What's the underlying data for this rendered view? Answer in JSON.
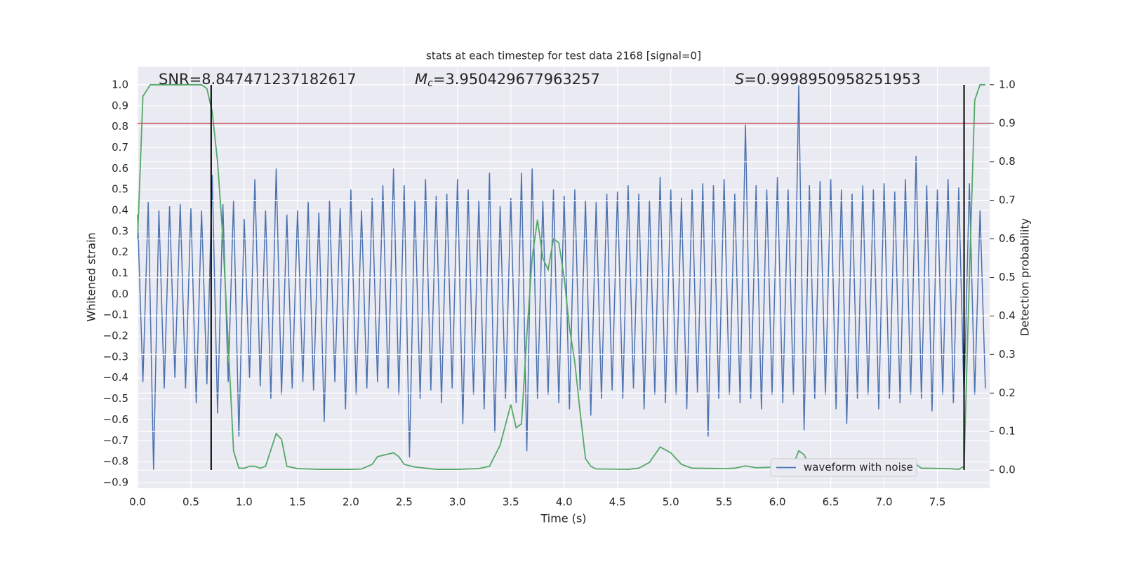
{
  "chart_data": {
    "type": "line",
    "title": "stats at each timestep for test data 2168 [signal=0]",
    "xlabel": "Time (s)",
    "ylabel": "Whitened strain",
    "y2label": "Detection probability",
    "annotations": {
      "snr": "SNR=8.847471237182617",
      "mc_symbol": "M",
      "mc_sub": "c",
      "mc_value": "=3.950429677963257",
      "s_symbol": "S",
      "s_value": "=0.9998950958251953"
    },
    "xlim": [
      0,
      7.99
    ],
    "ylim": [
      -0.927,
      1.087
    ],
    "y2lim": [
      -0.047,
      1.047
    ],
    "xticks": [
      {
        "value": 0,
        "label": "0.0"
      },
      {
        "value": 0.5,
        "label": "0.5"
      },
      {
        "value": 1,
        "label": "1.0"
      },
      {
        "value": 1.5,
        "label": "1.5"
      },
      {
        "value": 2,
        "label": "2.0"
      },
      {
        "value": 2.5,
        "label": "2.5"
      },
      {
        "value": 3,
        "label": "3.0"
      },
      {
        "value": 3.5,
        "label": "3.5"
      },
      {
        "value": 4,
        "label": "4.0"
      },
      {
        "value": 4.5,
        "label": "4.5"
      },
      {
        "value": 5,
        "label": "5.0"
      },
      {
        "value": 5.5,
        "label": "5.5"
      },
      {
        "value": 6,
        "label": "6.0"
      },
      {
        "value": 6.5,
        "label": "6.5"
      },
      {
        "value": 7,
        "label": "7.0"
      },
      {
        "value": 7.5,
        "label": "7.5"
      }
    ],
    "yticks": [
      {
        "value": 1,
        "label": "1.0"
      },
      {
        "value": 0.9,
        "label": "0.9"
      },
      {
        "value": 0.8,
        "label": "0.8"
      },
      {
        "value": 0.7,
        "label": "0.7"
      },
      {
        "value": 0.6,
        "label": "0.6"
      },
      {
        "value": 0.5,
        "label": "0.5"
      },
      {
        "value": 0.4,
        "label": "0.4"
      },
      {
        "value": 0.3,
        "label": "0.3"
      },
      {
        "value": 0.2,
        "label": "0.2"
      },
      {
        "value": 0.1,
        "label": "0.1"
      },
      {
        "value": 0,
        "label": "0.0"
      },
      {
        "value": -0.1,
        "label": "−0.1"
      },
      {
        "value": -0.2,
        "label": "−0.2"
      },
      {
        "value": -0.3,
        "label": "−0.3"
      },
      {
        "value": -0.4,
        "label": "−0.4"
      },
      {
        "value": -0.5,
        "label": "−0.5"
      },
      {
        "value": -0.6,
        "label": "−0.6"
      },
      {
        "value": -0.7,
        "label": "−0.7"
      },
      {
        "value": -0.8,
        "label": "−0.8"
      },
      {
        "value": -0.9,
        "label": "−0.9"
      }
    ],
    "y2ticks": [
      {
        "value": 0,
        "label": "0.0"
      },
      {
        "value": 0.1,
        "label": "0.1"
      },
      {
        "value": 0.2,
        "label": "0.2"
      },
      {
        "value": 0.3,
        "label": "0.3"
      },
      {
        "value": 0.4,
        "label": "0.4"
      },
      {
        "value": 0.5,
        "label": "0.5"
      },
      {
        "value": 0.6,
        "label": "0.6"
      },
      {
        "value": 0.7,
        "label": "0.7"
      },
      {
        "value": 0.8,
        "label": "0.8"
      },
      {
        "value": 0.9,
        "label": "0.9"
      },
      {
        "value": 1,
        "label": "1.0"
      }
    ],
    "grid": true,
    "legend": "lower right",
    "threshold": {
      "value": 0.9,
      "color": "#c44e52"
    },
    "vlines": {
      "x": [
        0.69,
        7.75
      ],
      "y": [
        -0.84,
        1.0
      ],
      "color": "#000000"
    },
    "series": [
      {
        "name": "waveform with noise",
        "color": "#4c72b0",
        "x": [
          0,
          0.05,
          0.1,
          0.15,
          0.2,
          0.25,
          0.3,
          0.35,
          0.4,
          0.45,
          0.5,
          0.55,
          0.6,
          0.65,
          0.7,
          0.75,
          0.8,
          0.85,
          0.9,
          0.95,
          1,
          1.05,
          1.1,
          1.15,
          1.2,
          1.25,
          1.3,
          1.35,
          1.4,
          1.45,
          1.5,
          1.55,
          1.6,
          1.65,
          1.7,
          1.75,
          1.8,
          1.85,
          1.9,
          1.95,
          2,
          2.05,
          2.1,
          2.15,
          2.2,
          2.25,
          2.3,
          2.35,
          2.4,
          2.45,
          2.5,
          2.55,
          2.6,
          2.65,
          2.7,
          2.75,
          2.8,
          2.85,
          2.9,
          2.95,
          3,
          3.05,
          3.1,
          3.15,
          3.2,
          3.25,
          3.3,
          3.35,
          3.4,
          3.45,
          3.5,
          3.55,
          3.6,
          3.65,
          3.7,
          3.75,
          3.8,
          3.85,
          3.9,
          3.95,
          4,
          4.05,
          4.1,
          4.15,
          4.2,
          4.25,
          4.3,
          4.35,
          4.4,
          4.45,
          4.5,
          4.55,
          4.6,
          4.65,
          4.7,
          4.75,
          4.8,
          4.85,
          4.9,
          4.95,
          5,
          5.05,
          5.1,
          5.15,
          5.2,
          5.25,
          5.3,
          5.35,
          5.4,
          5.45,
          5.5,
          5.55,
          5.6,
          5.65,
          5.7,
          5.75,
          5.8,
          5.85,
          5.9,
          5.95,
          6,
          6.05,
          6.1,
          6.15,
          6.2,
          6.25,
          6.3,
          6.35,
          6.4,
          6.45,
          6.5,
          6.55,
          6.6,
          6.65,
          6.7,
          6.75,
          6.8,
          6.85,
          6.9,
          6.95,
          7,
          7.05,
          7.1,
          7.15,
          7.2,
          7.25,
          7.3,
          7.35,
          7.4,
          7.45,
          7.5,
          7.55,
          7.6,
          7.65,
          7.7,
          7.75,
          7.8,
          7.85,
          7.9,
          7.95
        ],
        "values": [
          0.38,
          -0.42,
          0.44,
          -0.84,
          0.4,
          -0.45,
          0.42,
          -0.4,
          0.43,
          -0.45,
          0.41,
          -0.52,
          0.4,
          -0.43,
          0.57,
          -0.57,
          0.43,
          -0.42,
          0.45,
          -0.68,
          0.36,
          -0.4,
          0.55,
          -0.44,
          0.4,
          -0.5,
          0.6,
          -0.48,
          0.38,
          -0.45,
          0.4,
          -0.42,
          0.44,
          -0.46,
          0.39,
          -0.61,
          0.45,
          -0.42,
          0.41,
          -0.55,
          0.5,
          -0.48,
          0.4,
          -0.45,
          0.46,
          -0.42,
          0.52,
          -0.45,
          0.6,
          -0.48,
          0.52,
          -0.78,
          0.45,
          -0.5,
          0.55,
          -0.46,
          0.47,
          -0.52,
          0.48,
          -0.45,
          0.55,
          -0.62,
          0.5,
          -0.48,
          0.45,
          -0.55,
          0.58,
          -0.66,
          0.42,
          -0.5,
          0.46,
          -0.52,
          0.58,
          -0.75,
          0.6,
          -0.5,
          0.45,
          -0.48,
          0.5,
          -0.52,
          0.47,
          -0.55,
          0.5,
          -0.46,
          0.45,
          -0.58,
          0.44,
          -0.5,
          0.48,
          -0.46,
          0.49,
          -0.5,
          0.52,
          -0.45,
          0.48,
          -0.55,
          0.45,
          -0.48,
          0.56,
          -0.52,
          0.5,
          -0.48,
          0.46,
          -0.55,
          0.5,
          -0.47,
          0.53,
          -0.68,
          0.52,
          -0.5,
          0.55,
          -0.48,
          0.48,
          -0.52,
          0.81,
          -0.5,
          0.52,
          -0.55,
          0.5,
          -0.48,
          0.56,
          -0.52,
          0.5,
          -0.48,
          1.0,
          -0.65,
          0.52,
          -0.5,
          0.54,
          -0.48,
          0.55,
          -0.55,
          0.5,
          -0.62,
          0.48,
          -0.5,
          0.52,
          -0.48,
          0.5,
          -0.55,
          0.53,
          -0.5,
          0.49,
          -0.52,
          0.55,
          -0.48,
          0.66,
          -0.5,
          0.52,
          -0.56,
          0.5,
          -0.48,
          0.55,
          -0.52,
          0.51,
          -0.5,
          0.53,
          -0.48,
          0.4,
          -0.45
        ]
      },
      {
        "color": "#55a868",
        "axis": "y2",
        "x": [
          0,
          0.05,
          0.12,
          0.6,
          0.65,
          0.7,
          0.75,
          0.8,
          0.85,
          0.9,
          0.95,
          1,
          1.05,
          1.1,
          1.15,
          1.2,
          1.3,
          1.35,
          1.4,
          1.5,
          1.7,
          2,
          2.1,
          2.2,
          2.25,
          2.4,
          2.45,
          2.5,
          2.6,
          2.8,
          3,
          3.2,
          3.3,
          3.4,
          3.5,
          3.55,
          3.6,
          3.65,
          3.7,
          3.75,
          3.8,
          3.85,
          3.9,
          3.95,
          4,
          4.05,
          4.1,
          4.15,
          4.2,
          4.25,
          4.3,
          4.6,
          4.7,
          4.8,
          4.9,
          5,
          5.1,
          5.2,
          5.5,
          5.6,
          5.7,
          5.8,
          5.9,
          6,
          6.1,
          6.15,
          6.2,
          6.25,
          6.3,
          6.4,
          6.5,
          6.6,
          6.8,
          7,
          7.2,
          7.3,
          7.35,
          7.6,
          7.7,
          7.75,
          7.8,
          7.85,
          7.9,
          7.95
        ],
        "values": [
          0.6,
          0.97,
          1,
          1,
          0.99,
          0.93,
          0.8,
          0.6,
          0.33,
          0.05,
          0.005,
          0.005,
          0.01,
          0.01,
          0.005,
          0.01,
          0.095,
          0.08,
          0.01,
          0.004,
          0.002,
          0.002,
          0.003,
          0.015,
          0.035,
          0.045,
          0.035,
          0.015,
          0.008,
          0.002,
          0.002,
          0.004,
          0.01,
          0.065,
          0.17,
          0.11,
          0.12,
          0.35,
          0.55,
          0.65,
          0.55,
          0.52,
          0.6,
          0.59,
          0.5,
          0.37,
          0.28,
          0.15,
          0.03,
          0.01,
          0.003,
          0.002,
          0.005,
          0.02,
          0.06,
          0.045,
          0.015,
          0.005,
          0.004,
          0.005,
          0.011,
          0.006,
          0.007,
          0.008,
          0.006,
          0.015,
          0.05,
          0.04,
          0.012,
          0.005,
          0.022,
          0.003,
          0.002,
          0.003,
          0.006,
          0.015,
          0.005,
          0.004,
          0.002,
          0.01,
          0.5,
          0.96,
          1,
          1
        ]
      }
    ]
  }
}
